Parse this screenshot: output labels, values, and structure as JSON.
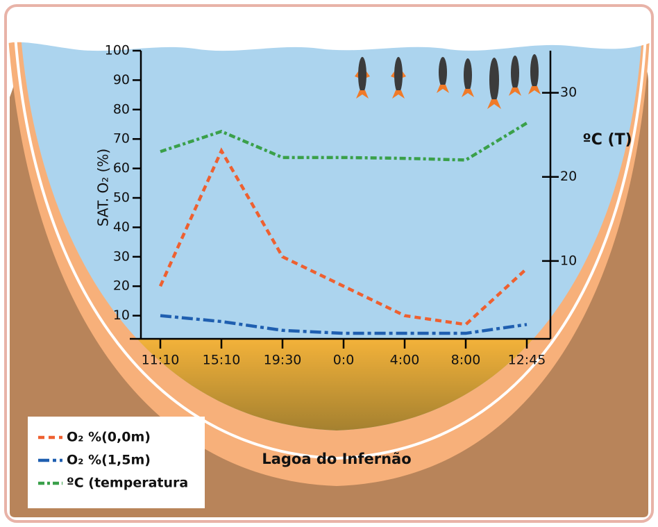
{
  "chart_data": {
    "type": "line",
    "annotation": "Lagoa do Infernão",
    "ylabel": "SAT. O₂ (%)",
    "y2label": "ºC (T)",
    "categories": [
      "11:10",
      "15:10",
      "19:30",
      "0:0",
      "4:00",
      "8:00",
      "12:45"
    ],
    "series": [
      {
        "name": "O₂ %(0,0m)",
        "color": "#ee6030",
        "values": [
          20,
          66,
          30,
          20,
          10,
          7,
          26
        ]
      },
      {
        "name": "O₂ %(1,5m)",
        "color": "#1f5fb0",
        "values": [
          10,
          8,
          5,
          4,
          4,
          4,
          7
        ]
      },
      {
        "name": "ºC (temperatura",
        "color": "#3aa04a",
        "axis": "y2",
        "values": [
          23,
          25.4,
          22.3,
          22.3,
          22.2,
          22,
          26.4
        ]
      }
    ],
    "ylim": [
      0,
      100
    ],
    "yticks": [
      10,
      20,
      30,
      40,
      50,
      60,
      70,
      80,
      90,
      100
    ],
    "y2lim": [
      0,
      35
    ],
    "y2ticks": [
      10,
      20,
      30
    ],
    "legend": "bottom-left"
  }
}
